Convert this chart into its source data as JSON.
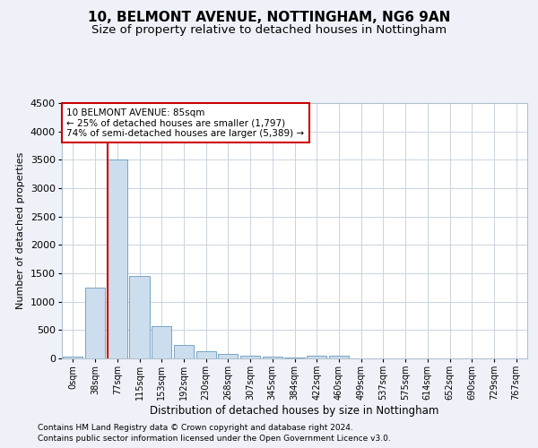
{
  "title1": "10, BELMONT AVENUE, NOTTINGHAM, NG6 9AN",
  "title2": "Size of property relative to detached houses in Nottingham",
  "xlabel": "Distribution of detached houses by size in Nottingham",
  "ylabel": "Number of detached properties",
  "categories": [
    "0sqm",
    "38sqm",
    "77sqm",
    "115sqm",
    "153sqm",
    "192sqm",
    "230sqm",
    "268sqm",
    "307sqm",
    "345sqm",
    "384sqm",
    "422sqm",
    "460sqm",
    "499sqm",
    "537sqm",
    "575sqm",
    "614sqm",
    "652sqm",
    "690sqm",
    "729sqm",
    "767sqm"
  ],
  "values": [
    30,
    1250,
    3500,
    1460,
    570,
    230,
    120,
    80,
    50,
    35,
    10,
    50,
    55,
    0,
    0,
    0,
    0,
    0,
    0,
    0,
    0
  ],
  "bar_color": "#ccdded",
  "bar_edge_color": "#6699bb",
  "vline_x_idx": 2,
  "vline_color": "#cc0000",
  "annotation_text": "10 BELMONT AVENUE: 85sqm\n← 25% of detached houses are smaller (1,797)\n74% of semi-detached houses are larger (5,389) →",
  "annotation_box_color": "#ffffff",
  "annotation_box_edge": "#cc0000",
  "ylim": [
    0,
    4500
  ],
  "yticks": [
    0,
    500,
    1000,
    1500,
    2000,
    2500,
    3000,
    3500,
    4000,
    4500
  ],
  "footnote1": "Contains HM Land Registry data © Crown copyright and database right 2024.",
  "footnote2": "Contains public sector information licensed under the Open Government Licence v3.0.",
  "bg_color": "#eef2f8",
  "plot_bg_color": "#ffffff",
  "grid_color": "#c8d4e0",
  "title1_fontsize": 11,
  "title2_fontsize": 9.5,
  "footnote_fontsize": 6.5,
  "xlabel_fontsize": 8.5,
  "ylabel_fontsize": 8,
  "ytick_fontsize": 8,
  "xtick_fontsize": 7
}
